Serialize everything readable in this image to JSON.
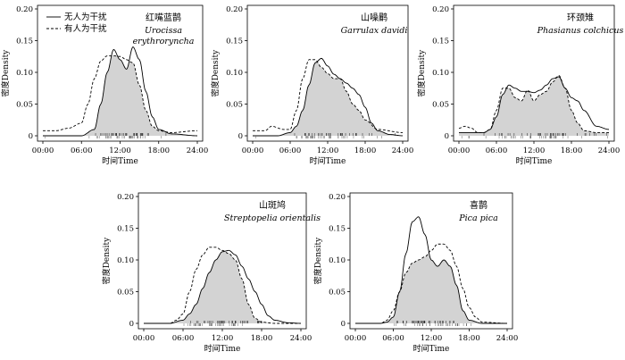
{
  "legend": {
    "solid": "无人为干扰",
    "dashed": "有人为干扰"
  },
  "colors": {
    "fill": "#d3d3d3",
    "solid_line": "#000000",
    "dashed_line": "#000000"
  },
  "chart_data": [
    {
      "type": "area",
      "title_zh": "红嘴蓝鹊",
      "title_latin": "Urocissa erythroryncha",
      "title_latin_lines": [
        "Urocissa",
        "erythroryncha"
      ],
      "xlabel": "时间Time",
      "ylabel": "密度Density",
      "x_ticks": [
        "00:00",
        "06:00",
        "12:00",
        "18:00",
        "24:00"
      ],
      "y_ticks": [
        "0",
        "0.05",
        "0.10",
        "0.15",
        "0.20"
      ],
      "xlim": [
        0,
        24
      ],
      "ylim": [
        0,
        0.2
      ],
      "series": [
        {
          "name": "无人为干扰",
          "style": "solid",
          "x": [
            0,
            3,
            6,
            8,
            9,
            10,
            11,
            12,
            13,
            14,
            15,
            16,
            17,
            18,
            20,
            24
          ],
          "y": [
            0,
            0,
            0,
            0.01,
            0.05,
            0.1,
            0.136,
            0.12,
            0.105,
            0.14,
            0.12,
            0.07,
            0.03,
            0.01,
            0.003,
            0
          ]
        },
        {
          "name": "有人为干扰",
          "style": "dashed",
          "x": [
            0,
            2,
            4,
            6,
            7,
            8,
            9,
            10,
            11,
            12,
            13,
            14,
            15,
            16,
            17,
            18,
            20,
            24
          ],
          "y": [
            0.008,
            0.008,
            0.012,
            0.02,
            0.05,
            0.09,
            0.118,
            0.126,
            0.126,
            0.125,
            0.12,
            0.115,
            0.08,
            0.04,
            0.015,
            0.008,
            0.005,
            0.008
          ]
        }
      ],
      "overlap_fill": true
    },
    {
      "type": "area",
      "title_zh": "山噪鹛",
      "title_latin": "Garrulax davidi",
      "title_latin_lines": [
        "Garrulax davidi"
      ],
      "xlabel": "时间Time",
      "ylabel": "密度Density",
      "x_ticks": [
        "00:00",
        "06:00",
        "12:00",
        "18:00",
        "24:00"
      ],
      "y_ticks": [
        "0",
        "0.05",
        "0.10",
        "0.15",
        "0.20"
      ],
      "xlim": [
        0,
        24
      ],
      "ylim": [
        0,
        0.2
      ],
      "series": [
        {
          "name": "无人为干扰",
          "style": "solid",
          "x": [
            0,
            4,
            6,
            7,
            8,
            9,
            10,
            11,
            12,
            13,
            14,
            15,
            16,
            17,
            18,
            19,
            20,
            22,
            24
          ],
          "y": [
            0,
            0,
            0.005,
            0.015,
            0.04,
            0.08,
            0.115,
            0.122,
            0.11,
            0.097,
            0.09,
            0.083,
            0.075,
            0.065,
            0.045,
            0.02,
            0.008,
            0.002,
            0
          ]
        },
        {
          "name": "有人为干扰",
          "style": "dashed",
          "x": [
            0,
            2,
            3,
            5,
            6,
            7,
            8,
            9,
            10,
            11,
            12,
            13,
            14,
            15,
            16,
            17,
            18,
            20,
            24
          ],
          "y": [
            0.008,
            0.008,
            0.015,
            0.01,
            0.01,
            0.04,
            0.09,
            0.12,
            0.12,
            0.108,
            0.098,
            0.09,
            0.09,
            0.07,
            0.05,
            0.04,
            0.025,
            0.01,
            0.005
          ]
        }
      ],
      "overlap_fill": true
    },
    {
      "type": "area",
      "title_zh": "环颈雉",
      "title_latin": "Phasianus colchicus",
      "title_latin_lines": [
        "Phasianus colchicus"
      ],
      "xlabel": "时间Time",
      "ylabel": "密度Density",
      "x_ticks": [
        "00:00",
        "06:00",
        "12:00",
        "18:00",
        "24:00"
      ],
      "y_ticks": [
        "0",
        "0.05",
        "0.10",
        "0.15",
        "0.20"
      ],
      "xlim": [
        0,
        24
      ],
      "ylim": [
        0,
        0.2
      ],
      "series": [
        {
          "name": "无人为干扰",
          "style": "solid",
          "x": [
            0,
            2,
            4,
            5,
            6,
            7,
            8,
            9,
            10,
            11,
            12,
            13,
            14,
            15,
            16,
            17,
            18,
            19,
            20,
            22,
            24
          ],
          "y": [
            0.005,
            0.005,
            0.005,
            0.01,
            0.03,
            0.065,
            0.08,
            0.075,
            0.07,
            0.07,
            0.068,
            0.072,
            0.08,
            0.09,
            0.093,
            0.075,
            0.06,
            0.055,
            0.04,
            0.015,
            0.01
          ]
        },
        {
          "name": "有人为干扰",
          "style": "dashed",
          "x": [
            0,
            1,
            2,
            3,
            4,
            5,
            6,
            7,
            8,
            9,
            10,
            11,
            12,
            13,
            14,
            15,
            16,
            17,
            18,
            19,
            20,
            22,
            24
          ],
          "y": [
            0.012,
            0.015,
            0.012,
            0.005,
            0.005,
            0.01,
            0.04,
            0.075,
            0.075,
            0.06,
            0.055,
            0.072,
            0.055,
            0.065,
            0.07,
            0.085,
            0.095,
            0.075,
            0.04,
            0.02,
            0.008,
            0.005,
            0.005
          ]
        }
      ],
      "overlap_fill": true
    },
    {
      "type": "area",
      "title_zh": "山斑鸠",
      "title_latin": "Streptopelia orientalis",
      "title_latin_lines": [
        "Streptopelia orientalis"
      ],
      "xlabel": "时间Time",
      "ylabel": "密度Density",
      "x_ticks": [
        "00:00",
        "06:00",
        "12:00",
        "18:00",
        "24:00"
      ],
      "y_ticks": [
        "0",
        "0.05",
        "0.10",
        "0.15",
        "0.20"
      ],
      "xlim": [
        0,
        24
      ],
      "ylim": [
        0,
        0.2
      ],
      "series": [
        {
          "name": "无人为干扰",
          "style": "solid",
          "x": [
            0,
            4,
            6,
            7,
            8,
            9,
            10,
            11,
            12,
            13,
            14,
            15,
            16,
            17,
            18,
            19,
            20,
            22,
            24
          ],
          "y": [
            0,
            0,
            0.005,
            0.015,
            0.03,
            0.055,
            0.08,
            0.1,
            0.113,
            0.115,
            0.108,
            0.09,
            0.07,
            0.05,
            0.03,
            0.012,
            0.005,
            0.001,
            0
          ]
        },
        {
          "name": "有人为干扰",
          "style": "dashed",
          "x": [
            0,
            4,
            5,
            6,
            7,
            8,
            9,
            10,
            11,
            12,
            13,
            14,
            15,
            16,
            17,
            18,
            20,
            24
          ],
          "y": [
            0,
            0,
            0.005,
            0.015,
            0.05,
            0.085,
            0.108,
            0.12,
            0.12,
            0.115,
            0.11,
            0.1,
            0.07,
            0.03,
            0.008,
            0.002,
            0,
            0
          ]
        }
      ],
      "overlap_fill": true
    },
    {
      "type": "area",
      "title_zh": "喜鹊",
      "title_latin": "Pica pica",
      "title_latin_lines": [
        "Pica pica"
      ],
      "xlabel": "时间Time",
      "ylabel": "密度Density",
      "x_ticks": [
        "00:00",
        "06:00",
        "12:00",
        "18:00",
        "24:00"
      ],
      "y_ticks": [
        "0",
        "0.05",
        "0.10",
        "0.15",
        "0.20"
      ],
      "xlim": [
        0,
        24
      ],
      "ylim": [
        0,
        0.2
      ],
      "series": [
        {
          "name": "无人为干扰",
          "style": "solid",
          "x": [
            0,
            4,
            5,
            6,
            7,
            8,
            9,
            10,
            11,
            12,
            13,
            14,
            15,
            16,
            17,
            18,
            20,
            24
          ],
          "y": [
            0,
            0,
            0.002,
            0.01,
            0.05,
            0.11,
            0.16,
            0.168,
            0.14,
            0.1,
            0.09,
            0.1,
            0.09,
            0.06,
            0.02,
            0.005,
            0,
            0
          ]
        },
        {
          "name": "有人为干扰",
          "style": "dashed",
          "x": [
            0,
            4,
            5,
            6,
            7,
            8,
            9,
            10,
            11,
            12,
            13,
            14,
            15,
            16,
            17,
            18,
            19,
            20,
            24
          ],
          "y": [
            0,
            0,
            0.005,
            0.02,
            0.05,
            0.08,
            0.095,
            0.1,
            0.105,
            0.115,
            0.125,
            0.125,
            0.115,
            0.09,
            0.055,
            0.025,
            0.01,
            0.002,
            0
          ]
        }
      ],
      "overlap_fill": true
    }
  ]
}
